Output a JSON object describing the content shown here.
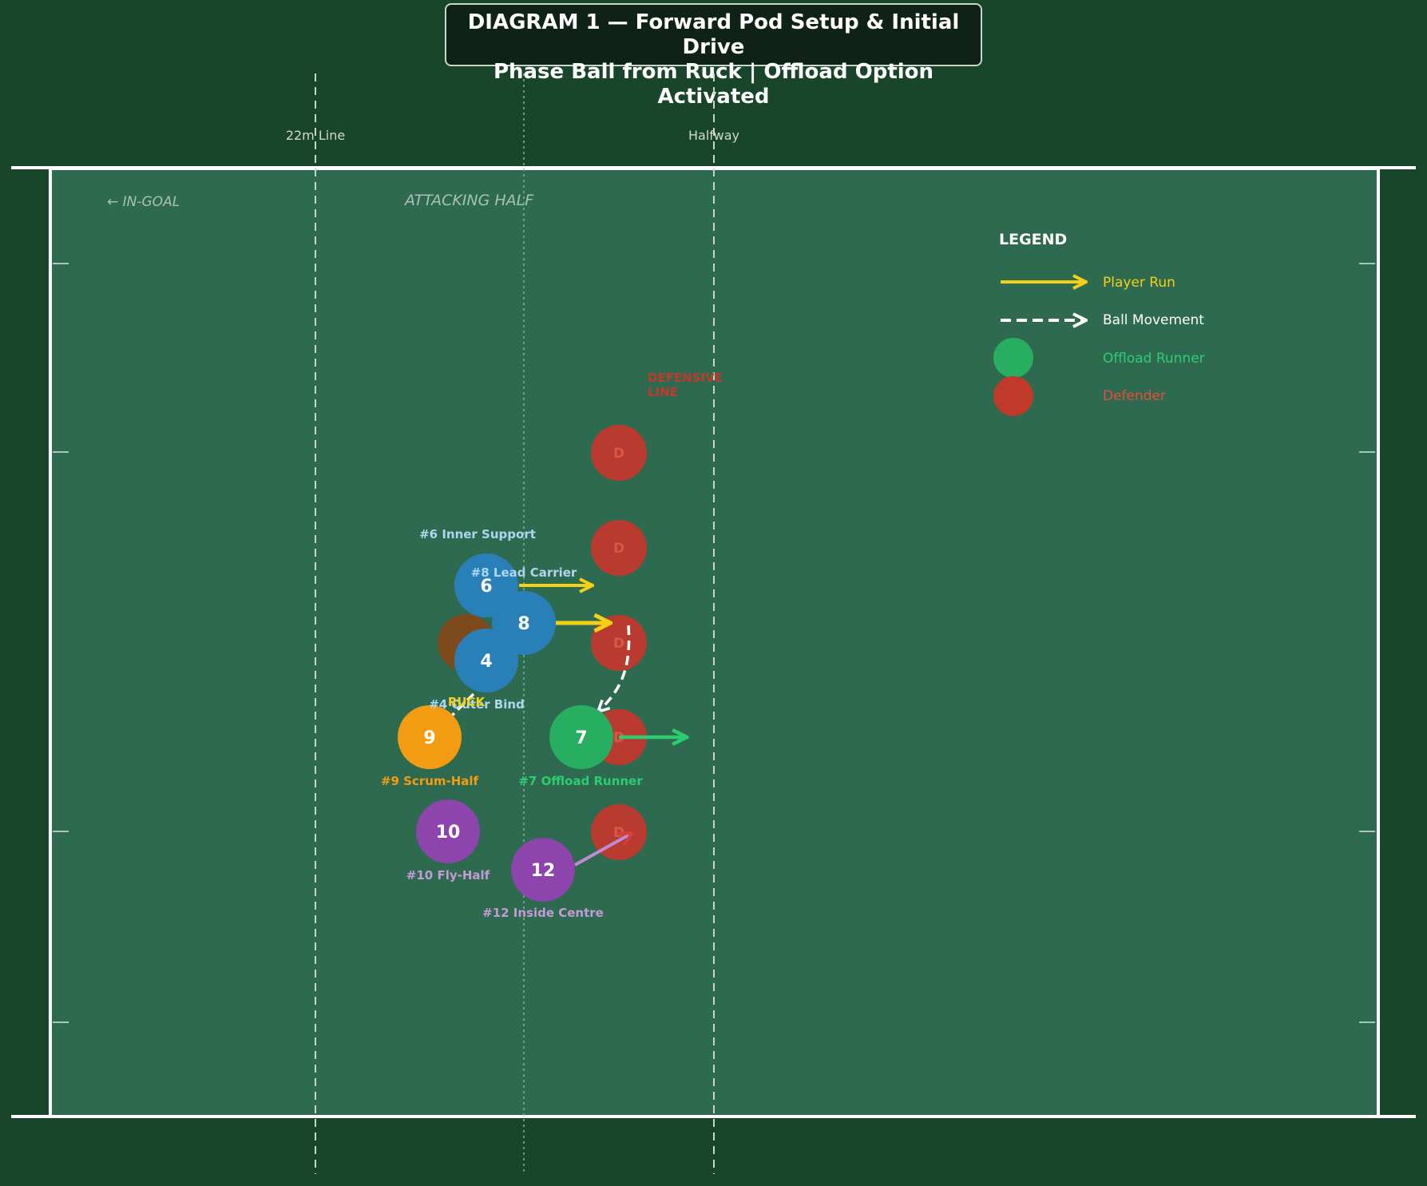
{
  "title": {
    "line1": "DIAGRAM 1 — Forward Pod Setup & Initial Drive",
    "line2": "Phase Ball from Ruck | Offload Option Activated"
  },
  "field": {
    "line_22m": "22m Line",
    "halfway": "Halfway",
    "in_goal": "← IN-GOAL",
    "attacking_half": "ATTACKING HALF",
    "defensive_line": [
      "DEFENSIVE",
      "LINE"
    ],
    "ruck": "RUCK"
  },
  "legend": {
    "title": "LEGEND",
    "player_run": "Player Run",
    "ball_movement": "Ball Movement",
    "offload_runner": "Offload Runner",
    "defender": "Defender"
  },
  "colors": {
    "forward": "#2980b9",
    "scrum_half": "#f39c12",
    "back": "#8e44ad",
    "offload": "#27ae60",
    "defender": "#c0392b",
    "run_arrow": "#f4d017",
    "ball_arrow": "#ffffff"
  },
  "players": {
    "p6": {
      "number": "6",
      "label": "#6 Inner Support"
    },
    "p8": {
      "number": "8",
      "label": "#8 Lead Carrier"
    },
    "p4": {
      "number": "4",
      "label": "#4 Outer Bind"
    },
    "p9": {
      "number": "9",
      "label": "#9 Scrum-Half"
    },
    "p7": {
      "number": "7",
      "label": "#7 Offload Runner"
    },
    "p10": {
      "number": "10",
      "label": "#10 Fly-Half"
    },
    "p12": {
      "number": "12",
      "label": "#12 Inside Centre"
    }
  },
  "defenders": [
    "D",
    "D",
    "D",
    "D",
    "D"
  ]
}
